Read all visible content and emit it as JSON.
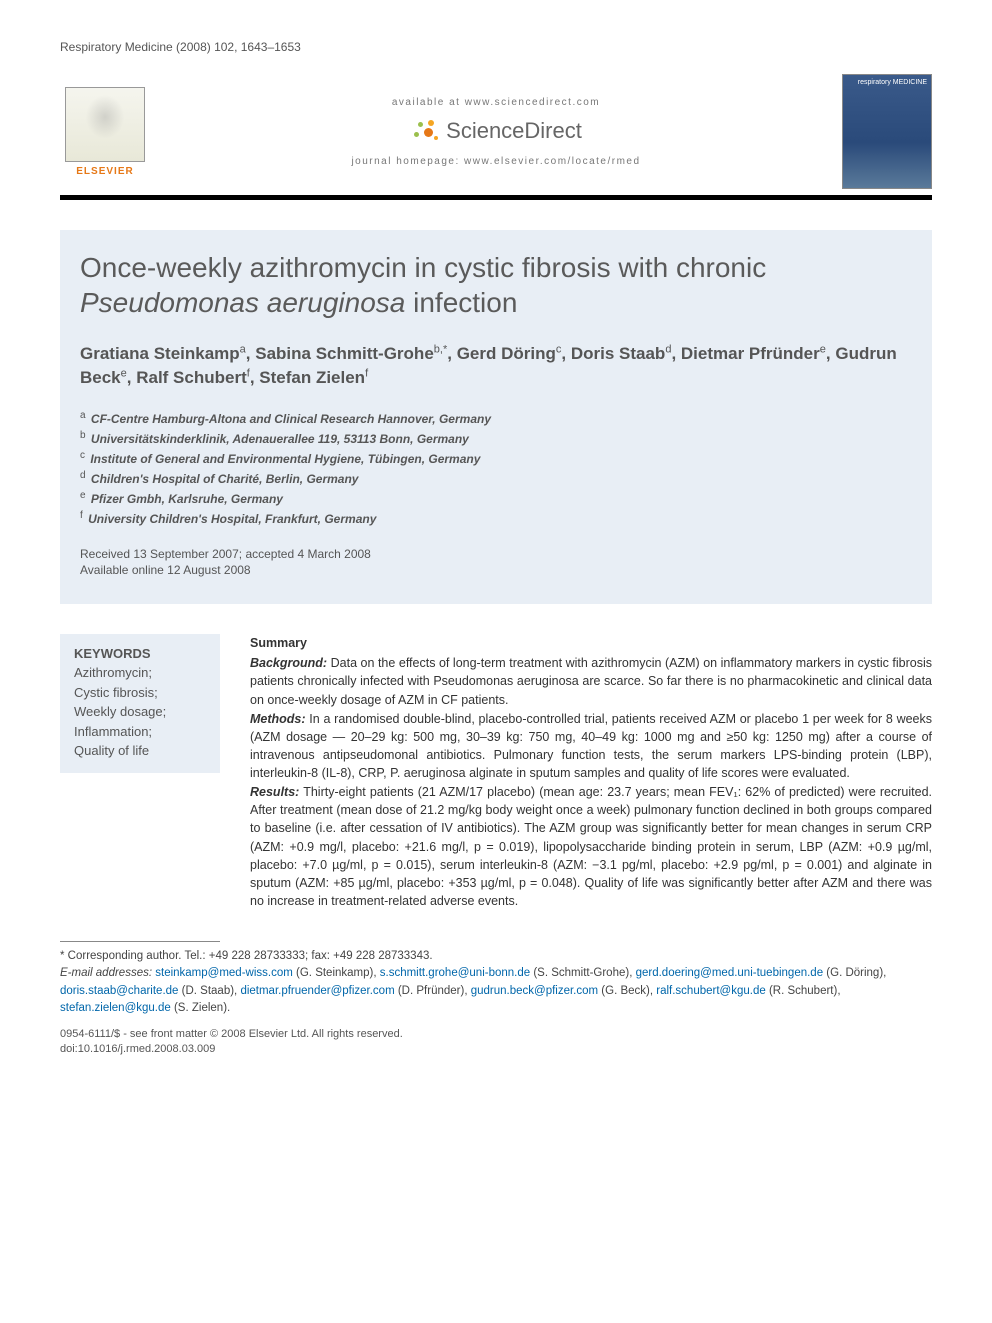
{
  "journal_ref": "Respiratory Medicine (2008) 102, 1643–1653",
  "header": {
    "elsevier_label": "ELSEVIER",
    "available_line": "available at www.sciencedirect.com",
    "sd_brand": "ScienceDirect",
    "homepage_line": "journal homepage: www.elsevier.com/locate/rmed",
    "cover_text": "respiratory MEDICINE"
  },
  "title_parts": {
    "pre": "Once-weekly azithromycin in cystic fibrosis with chronic ",
    "ital": "Pseudomonas aeruginosa",
    "post": " infection"
  },
  "authors": [
    {
      "name": "Gratiana Steinkamp",
      "sup": "a"
    },
    {
      "name": "Sabina Schmitt-Grohe",
      "sup": "b,*"
    },
    {
      "name": "Gerd Döring",
      "sup": "c"
    },
    {
      "name": "Doris Staab",
      "sup": "d"
    },
    {
      "name": "Dietmar Pfründer",
      "sup": "e"
    },
    {
      "name": "Gudrun Beck",
      "sup": "e"
    },
    {
      "name": "Ralf Schubert",
      "sup": "f"
    },
    {
      "name": "Stefan Zielen",
      "sup": "f"
    }
  ],
  "affiliations": [
    {
      "sup": "a",
      "text": "CF-Centre Hamburg-Altona and Clinical Research Hannover, Germany"
    },
    {
      "sup": "b",
      "text": "Universitätskinderklinik, Adenauerallee 119, 53113 Bonn, Germany"
    },
    {
      "sup": "c",
      "text": "Institute of General and Environmental Hygiene, Tübingen, Germany"
    },
    {
      "sup": "d",
      "text": "Children's Hospital of Charité, Berlin, Germany"
    },
    {
      "sup": "e",
      "text": "Pfizer Gmbh, Karlsruhe, Germany"
    },
    {
      "sup": "f",
      "text": "University Children's Hospital, Frankfurt, Germany"
    }
  ],
  "dates": {
    "received": "Received 13 September 2007; accepted 4 March 2008",
    "online": "Available online 12 August 2008"
  },
  "keywords": {
    "heading": "KEYWORDS",
    "items": [
      "Azithromycin;",
      "Cystic fibrosis;",
      "Weekly dosage;",
      "Inflammation;",
      "Quality of life"
    ]
  },
  "summary": {
    "heading": "Summary",
    "background_label": "Background:",
    "background_text": " Data on the effects of long-term treatment with azithromycin (AZM) on inflammatory markers in cystic fibrosis patients chronically infected with Pseudomonas aeruginosa are scarce. So far there is no pharmacokinetic and clinical data on once-weekly dosage of AZM in CF patients.",
    "methods_label": "Methods:",
    "methods_text": " In a randomised double-blind, placebo-controlled trial, patients received AZM or placebo 1 per week for 8 weeks (AZM dosage — 20–29 kg: 500 mg, 30–39 kg: 750 mg, 40–49 kg: 1000 mg and ≥50 kg: 1250 mg) after a course of intravenous antipseudomonal antibiotics. Pulmonary function tests, the serum markers LPS-binding protein (LBP), interleukin-8 (IL-8), CRP, P. aeruginosa alginate in sputum samples and quality of life scores were evaluated.",
    "results_label": "Results:",
    "results_text": " Thirty-eight patients (21 AZM/17 placebo) (mean age: 23.7 years; mean FEV₁: 62% of predicted) were recruited. After treatment (mean dose of 21.2 mg/kg body weight once a week) pulmonary function declined in both groups compared to baseline (i.e. after cessation of IV antibiotics). The AZM group was significantly better for mean changes in serum CRP (AZM: +0.9 mg/l, placebo: +21.6 mg/l, p = 0.019), lipopolysaccharide binding protein in serum, LBP (AZM: +0.9 µg/ml, placebo: +7.0 µg/ml, p = 0.015), serum interleukin-8 (AZM: −3.1 pg/ml, placebo: +2.9 pg/ml, p = 0.001) and alginate in sputum (AZM: +85 µg/ml, placebo: +353 µg/ml, p = 0.048). Quality of life was significantly better after AZM and there was no increase in treatment-related adverse events."
  },
  "correspondence": {
    "star": "* Corresponding author. Tel.: +49 228 28733333; fax: +49 228 28733343.",
    "email_label": "E-mail addresses:",
    "emails": [
      {
        "addr": "steinkamp@med-wiss.com",
        "who": "(G. Steinkamp)"
      },
      {
        "addr": "s.schmitt.grohe@uni-bonn.de",
        "who": "(S. Schmitt-Grohe)"
      },
      {
        "addr": "gerd.doering@med.uni-tuebingen.de",
        "who": "(G. Döring)"
      },
      {
        "addr": "doris.staab@charite.de",
        "who": "(D. Staab)"
      },
      {
        "addr": "dietmar.pfruender@pfizer.com",
        "who": "(D. Pfründer)"
      },
      {
        "addr": "gudrun.beck@pfizer.com",
        "who": "(G. Beck)"
      },
      {
        "addr": "ralf.schubert@kgu.de",
        "who": "(R. Schubert)"
      },
      {
        "addr": "stefan.zielen@kgu.de",
        "who": "(S. Zielen)"
      }
    ]
  },
  "copyright": {
    "line1": "0954-6111/$ - see front matter © 2008 Elsevier Ltd. All rights reserved.",
    "line2": "doi:10.1016/j.rmed.2008.03.009"
  },
  "colors": {
    "title_bg": "#e8eef5",
    "link": "#0066aa",
    "elsevier_orange": "#e67817"
  }
}
